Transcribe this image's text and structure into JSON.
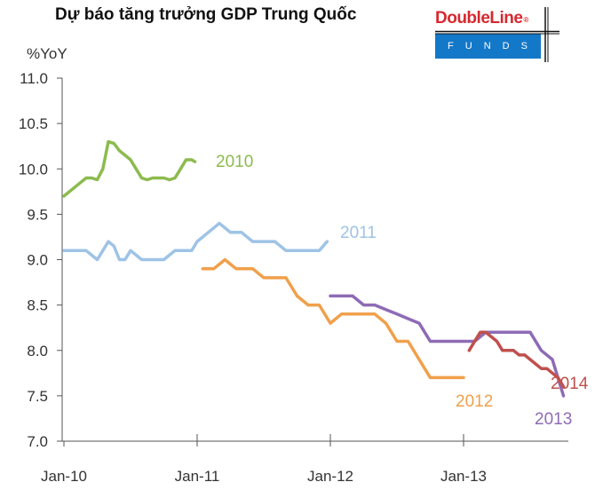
{
  "header": {
    "title": "Dự báo tăng trưởng GDP Trung Quốc"
  },
  "logo": {
    "brand": "DoubleLine",
    "registered_mark": "®",
    "sub": "FUNDS",
    "color_red": "#d7282f",
    "color_blue": "#1478c8"
  },
  "chart_data": {
    "type": "line",
    "title": "Dự báo tăng trưởng GDP Trung Quốc",
    "ylabel": "%YoY",
    "xlabel": "",
    "ylim": [
      7.0,
      11.0
    ],
    "xlim": [
      0,
      49
    ],
    "y_ticks": [
      "7.0",
      "7.5",
      "8.0",
      "8.5",
      "9.0",
      "9.5",
      "10.0",
      "10.5",
      "11.0"
    ],
    "y_tick_values": [
      7.0,
      7.5,
      8.0,
      8.5,
      9.0,
      9.5,
      10.0,
      10.5,
      11.0
    ],
    "x_ticks": [
      "Jan-10",
      "Jan-11",
      "Jan-12",
      "Jan-13"
    ],
    "x_tick_values": [
      0,
      12,
      24,
      36
    ],
    "x_unit_note": "months since Jan-10",
    "grid": false,
    "series": [
      {
        "name": "2010",
        "color": "#8cbb4e",
        "x": [
          0,
          1,
          2,
          2.5,
          3,
          3.5,
          4,
          4.5,
          5,
          5.5,
          6,
          6.5,
          7,
          7.5,
          8,
          8.5,
          9,
          9.5,
          10,
          10.5,
          11,
          11.5,
          11.8
        ],
        "values": [
          9.7,
          9.8,
          9.9,
          9.9,
          9.88,
          10.0,
          10.3,
          10.28,
          10.2,
          10.15,
          10.1,
          10.0,
          9.9,
          9.88,
          9.9,
          9.9,
          9.9,
          9.88,
          9.9,
          10.0,
          10.1,
          10.1,
          10.08
        ]
      },
      {
        "name": "2011",
        "color": "#9ec3e6",
        "x": [
          0,
          1,
          2,
          3,
          3.5,
          4,
          4.5,
          5,
          5.5,
          6,
          6.5,
          7,
          7.5,
          8,
          9,
          10,
          11,
          11.5,
          12,
          13,
          14,
          15,
          16,
          17,
          18,
          19,
          20,
          21,
          22,
          23,
          23.7
        ],
        "values": [
          9.1,
          9.1,
          9.1,
          9.0,
          9.1,
          9.2,
          9.15,
          9.0,
          9.0,
          9.1,
          9.05,
          9.0,
          9.0,
          9.0,
          9.0,
          9.1,
          9.1,
          9.1,
          9.2,
          9.3,
          9.4,
          9.3,
          9.3,
          9.2,
          9.2,
          9.2,
          9.1,
          9.1,
          9.1,
          9.1,
          9.2
        ]
      },
      {
        "name": "2012",
        "color": "#f0a04b",
        "x": [
          12.5,
          13.5,
          14.5,
          15,
          15.5,
          16,
          17,
          18,
          19,
          20,
          21,
          22,
          23,
          24,
          25,
          26,
          27,
          28,
          29,
          30,
          31,
          32,
          33,
          34,
          35,
          36
        ],
        "values": [
          8.9,
          8.9,
          9.0,
          8.95,
          8.9,
          8.9,
          8.9,
          8.8,
          8.8,
          8.8,
          8.6,
          8.5,
          8.5,
          8.3,
          8.4,
          8.4,
          8.4,
          8.4,
          8.3,
          8.1,
          8.1,
          7.9,
          7.7,
          7.7,
          7.7,
          7.7
        ]
      },
      {
        "name": "2013",
        "color": "#8e6bb5",
        "x": [
          24,
          25,
          26,
          27,
          28,
          29,
          30,
          31,
          32,
          33,
          34,
          35,
          36,
          37,
          38,
          39,
          40,
          41,
          42,
          43,
          44,
          45
        ],
        "values": [
          8.6,
          8.6,
          8.6,
          8.5,
          8.5,
          8.45,
          8.4,
          8.35,
          8.3,
          8.1,
          8.1,
          8.1,
          8.1,
          8.1,
          8.2,
          8.2,
          8.2,
          8.2,
          8.2,
          8.0,
          7.9,
          7.5
        ]
      },
      {
        "name": "2014",
        "color": "#c0504d",
        "x": [
          36.5,
          37,
          37.5,
          38,
          38.5,
          39,
          39.5,
          40,
          40.5,
          41,
          41.5,
          42,
          42.5,
          43,
          43.5,
          44,
          44.5,
          45
        ],
        "values": [
          8.0,
          8.1,
          8.2,
          8.2,
          8.15,
          8.1,
          8.0,
          8.0,
          8.0,
          7.95,
          7.95,
          7.9,
          7.85,
          7.8,
          7.8,
          7.75,
          7.7,
          7.6
        ]
      }
    ]
  }
}
